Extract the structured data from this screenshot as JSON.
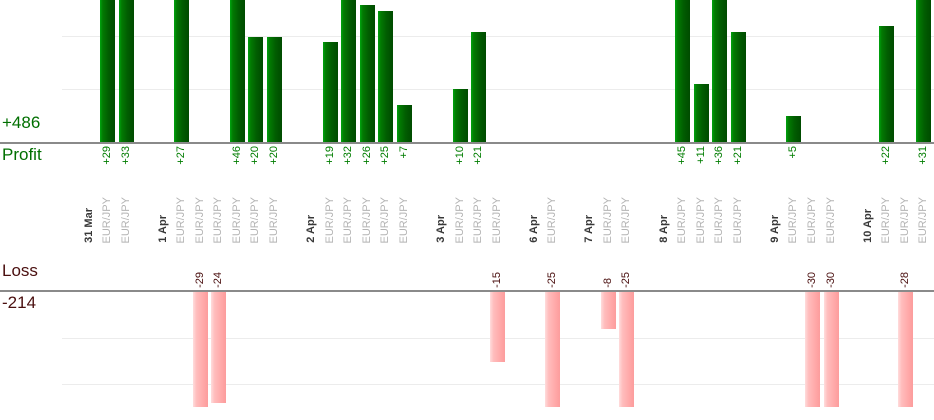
{
  "chart": {
    "profit_total_label": "+486",
    "profit_axis_label": "Profit",
    "loss_axis_label": "Loss",
    "loss_total_label": "-214"
  },
  "chart_data": {
    "type": "bar",
    "title": "",
    "instrument_label": "EUR/JPY",
    "profit": {
      "label": "Profit",
      "total": 486,
      "total_label": "+486",
      "gridline_values": [
        10,
        20
      ],
      "axis_clip_value": 27
    },
    "loss": {
      "label": "Loss",
      "total": -214,
      "total_label": "-214",
      "gridline_values": [
        -10,
        -20
      ],
      "axis_clip_value": -25
    },
    "groups": [
      {
        "date": "31 Mar",
        "trades": [
          29,
          33
        ]
      },
      {
        "date": "1 Apr",
        "trades": [
          27,
          -29,
          -24,
          46,
          20,
          20
        ]
      },
      {
        "date": "2 Apr",
        "trades": [
          19,
          32,
          26,
          25,
          7
        ]
      },
      {
        "date": "3 Apr",
        "trades": [
          10,
          21,
          -15
        ]
      },
      {
        "date": "6 Apr",
        "trades": [
          -25
        ]
      },
      {
        "date": "7 Apr",
        "trades": [
          -8,
          -25
        ]
      },
      {
        "date": "8 Apr",
        "trades": [
          45,
          11,
          36,
          21
        ]
      },
      {
        "date": "9 Apr",
        "trades": [
          5,
          -30,
          -30
        ]
      },
      {
        "date": "10 Apr",
        "trades": [
          22,
          -28,
          31
        ]
      }
    ],
    "colors": {
      "profit_bar": "#006600",
      "loss_bar": "#ffb0b0",
      "profit_text": "#007d00",
      "loss_text": "#4a0f0f",
      "date_text": "#383838",
      "instrument_text": "#b4b4b4",
      "axis_line": "#8a8a8a",
      "gridline": "#ececec"
    },
    "legend_position": "none",
    "grid": true
  }
}
